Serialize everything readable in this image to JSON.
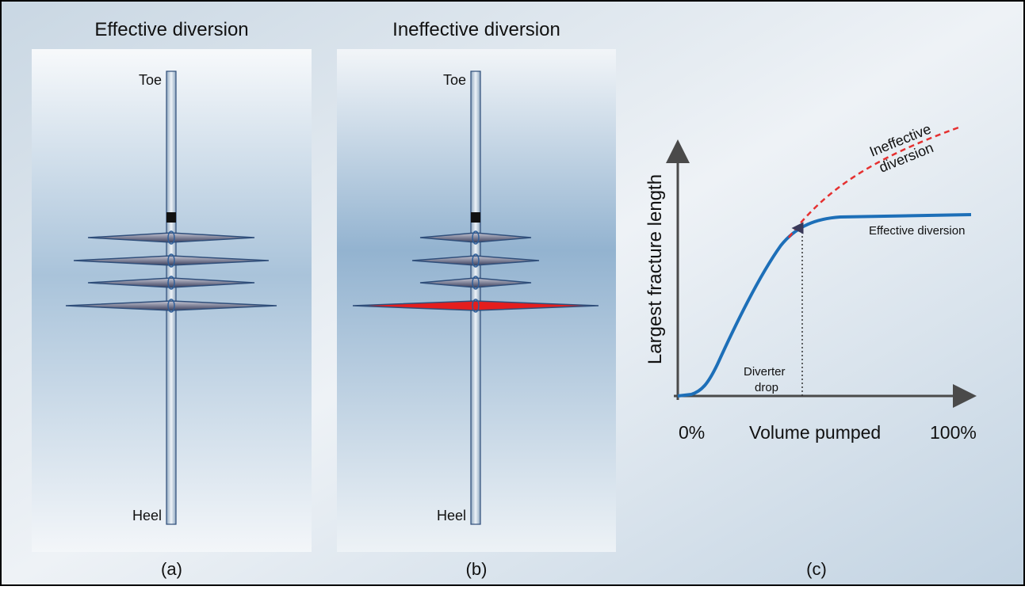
{
  "panels": [
    {
      "title": "Effective diversion",
      "toe": "Toe",
      "heel": "Heel",
      "caption": "(a)"
    },
    {
      "title": "Ineffective diversion",
      "toe": "Toe",
      "heel": "Heel",
      "caption": "(b)"
    }
  ],
  "graph": {
    "y_label": "Largest fracture length",
    "x_label": "Volume pumped",
    "x_start": "0%",
    "x_end": "100%",
    "ineffective_label": [
      "Ineffective",
      "diversion"
    ],
    "effective_label": "Effective diversion",
    "marker_label": [
      "Diverter",
      "drop"
    ],
    "caption": "(c)"
  }
}
